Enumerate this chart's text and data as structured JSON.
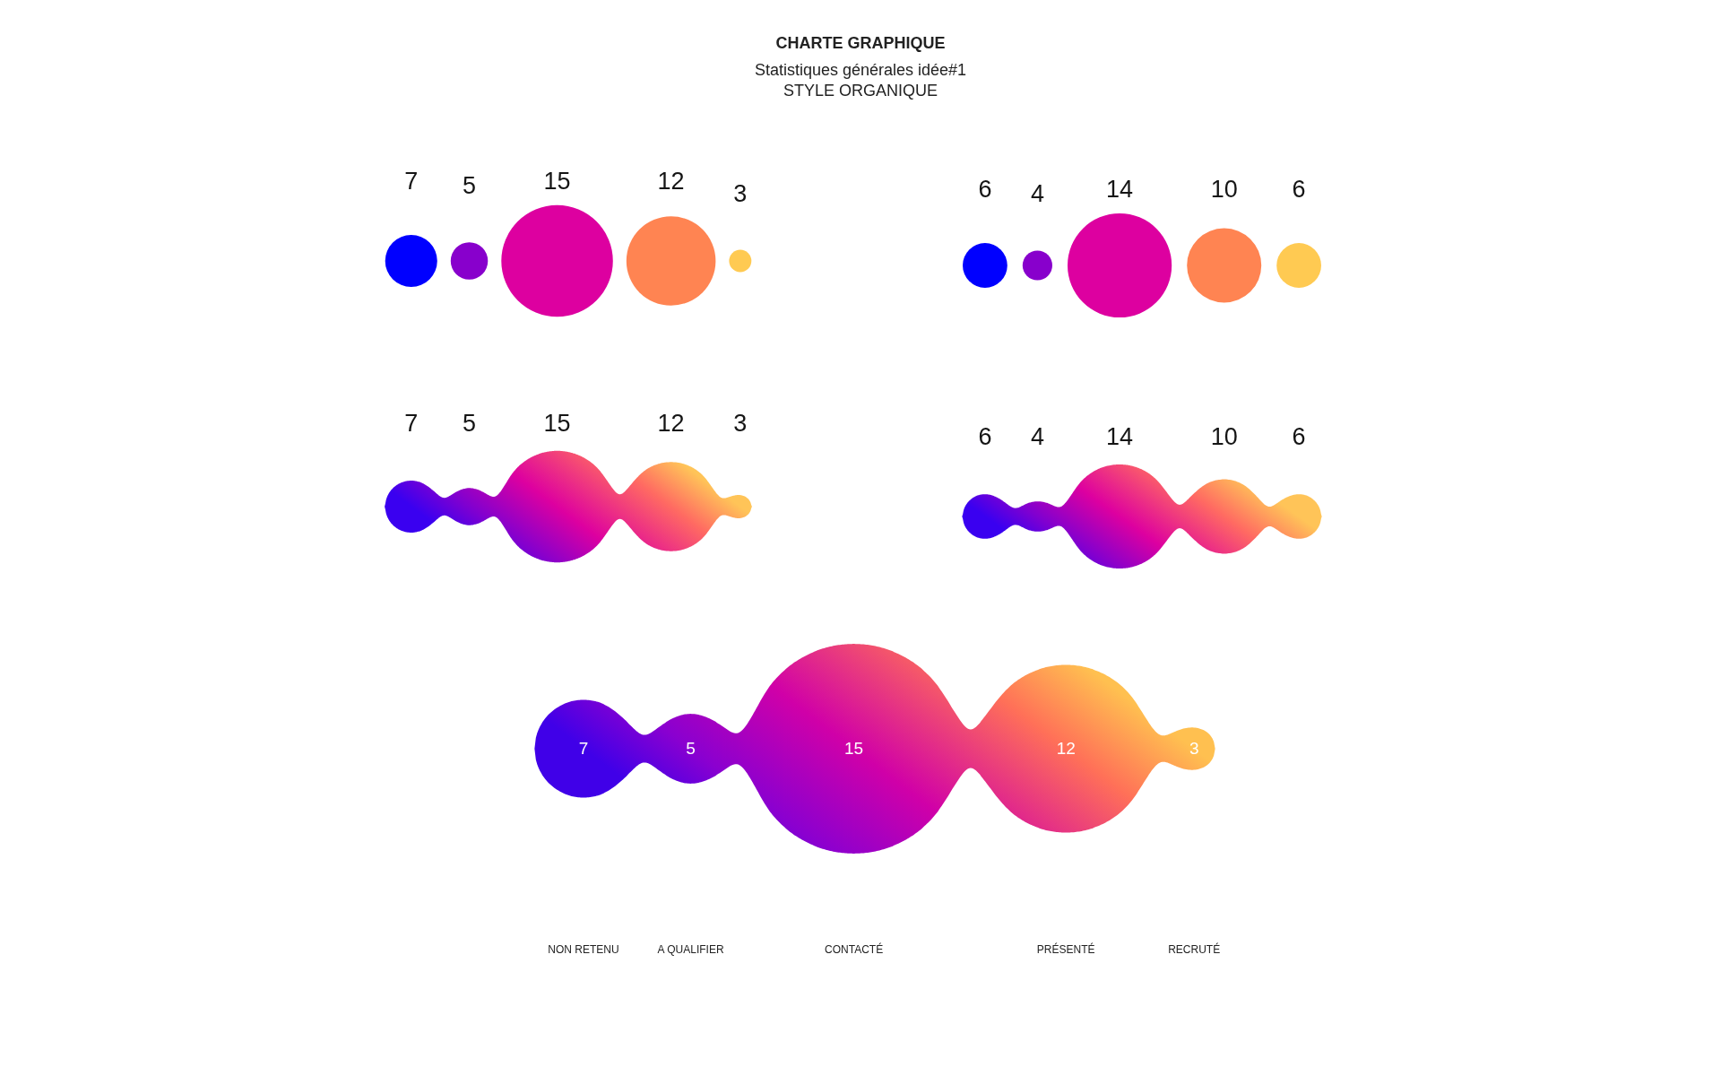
{
  "chart_data": [
    {
      "type": "other",
      "title": "CHARTE GRAPHIQUE",
      "subtitle": "Statistiques générales idée#1\nSTYLE ORGANIQUE",
      "categories": [
        null,
        null,
        null,
        null,
        null
      ],
      "values": [
        7,
        5,
        15,
        12,
        3
      ],
      "colors": [
        "#0000ff",
        "#8800cc",
        "#dd00a0",
        "#ff8452",
        "#ffca52"
      ],
      "data_labels": true
    },
    {
      "type": "other",
      "categories": [
        null,
        null,
        null,
        null,
        null
      ],
      "values": [
        6,
        4,
        14,
        10,
        6
      ],
      "colors": [
        "#0000ff",
        "#8800cc",
        "#dd00a0",
        "#ff8452",
        "#ffca52"
      ],
      "data_labels": true
    },
    {
      "type": "other",
      "categories": [
        null,
        null,
        null,
        null,
        null
      ],
      "values": [
        7,
        5,
        15,
        12,
        3
      ],
      "colors": [
        "#3a00f0",
        "#8000d0",
        "#dd00a0",
        "#ff6a62",
        "#ffc458"
      ],
      "data_labels": true
    },
    {
      "type": "other",
      "categories": [
        null,
        null,
        null,
        null,
        null
      ],
      "values": [
        6,
        4,
        14,
        10,
        6
      ],
      "colors": [
        "#3a00f0",
        "#8000d0",
        "#dd00a0",
        "#ff6a62",
        "#ffc458"
      ],
      "data_labels": true
    },
    {
      "type": "other",
      "categories": [
        "NON RETENU",
        "A QUALIFIER",
        "CONTACTÉ",
        "PRÉSENTÉ",
        "RECRUTÉ"
      ],
      "values": [
        7,
        5,
        15,
        12,
        3
      ],
      "colors": [
        "#4000e8",
        "#8a00d0",
        "#d000a8",
        "#ff7058",
        "#ffc050"
      ],
      "data_labels": true
    }
  ]
}
